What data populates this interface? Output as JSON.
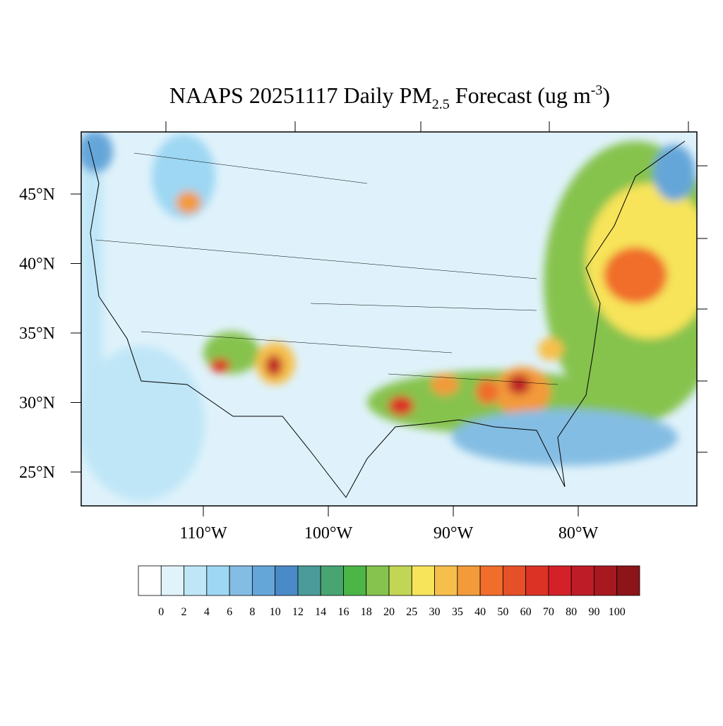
{
  "title": {
    "prefix": "NAAPS 20251117 Daily PM",
    "sub": "2.5",
    "middle": " Forecast (ug m",
    "sup": "-3",
    "end": ")"
  },
  "map": {
    "lat_ticks": [
      {
        "value": 45,
        "label": "45°N"
      },
      {
        "value": 40,
        "label": "40°N"
      },
      {
        "value": 35,
        "label": "35°N"
      },
      {
        "value": 30,
        "label": "30°N"
      },
      {
        "value": 25,
        "label": "25°N"
      }
    ],
    "lon_ticks": [
      {
        "value": -110,
        "label": "110°W"
      },
      {
        "value": -100,
        "label": "100°W"
      },
      {
        "value": -90,
        "label": "90°W"
      },
      {
        "value": -80,
        "label": "80°W"
      }
    ]
  },
  "colorbar": {
    "levels": [
      0,
      2,
      4,
      6,
      8,
      10,
      12,
      14,
      16,
      18,
      20,
      25,
      30,
      35,
      40,
      50,
      60,
      70,
      80,
      90,
      100
    ],
    "colors": [
      "#ffffff",
      "#e0f3fb",
      "#bfe6f7",
      "#9dd7f3",
      "#84bde3",
      "#65a6d9",
      "#4a8ac8",
      "#4a9b9a",
      "#48a572",
      "#4bb548",
      "#86c34e",
      "#c2d655",
      "#f7e45a",
      "#f6bf4c",
      "#f39a3b",
      "#f06d2b",
      "#e65028",
      "#db3225",
      "#d42028",
      "#be1c26",
      "#a8191f",
      "#8b1519"
    ]
  }
}
